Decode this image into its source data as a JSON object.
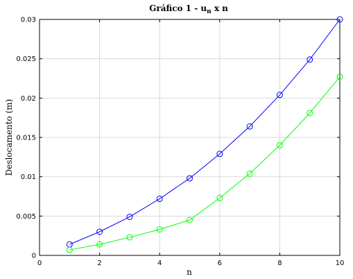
{
  "chart_data": {
    "type": "line",
    "title_main": "Gráfico 1 - u",
    "title_sub": "n",
    "title_tail": " x n",
    "xlabel": "n",
    "ylabel": "Deslocamento (m)",
    "xlim": [
      0,
      10
    ],
    "ylim": [
      0,
      0.03
    ],
    "x_ticks": [
      0,
      2,
      4,
      6,
      8,
      10
    ],
    "x_tick_labels": [
      "0",
      "2",
      "4",
      "6",
      "8",
      "10"
    ],
    "y_ticks": [
      0,
      0.005,
      0.01,
      0.015,
      0.02,
      0.025,
      0.03
    ],
    "y_tick_labels": [
      "0",
      "0.005",
      "0.01",
      "0.015",
      "0.02",
      "0.025",
      "0.03"
    ],
    "grid": true,
    "marker": "circle",
    "x": [
      1,
      2,
      3,
      4,
      5,
      6,
      7,
      8,
      9,
      10
    ],
    "series": [
      {
        "color": "#0000ff",
        "values": [
          0.0014,
          0.003,
          0.0049,
          0.0072,
          0.0098,
          0.0129,
          0.0164,
          0.0204,
          0.0249,
          0.03
        ]
      },
      {
        "color": "#00ff00",
        "values": [
          0.0007,
          0.0014,
          0.0023,
          0.0033,
          0.0045,
          0.0073,
          0.0104,
          0.014,
          0.0181,
          0.0227
        ]
      }
    ]
  }
}
